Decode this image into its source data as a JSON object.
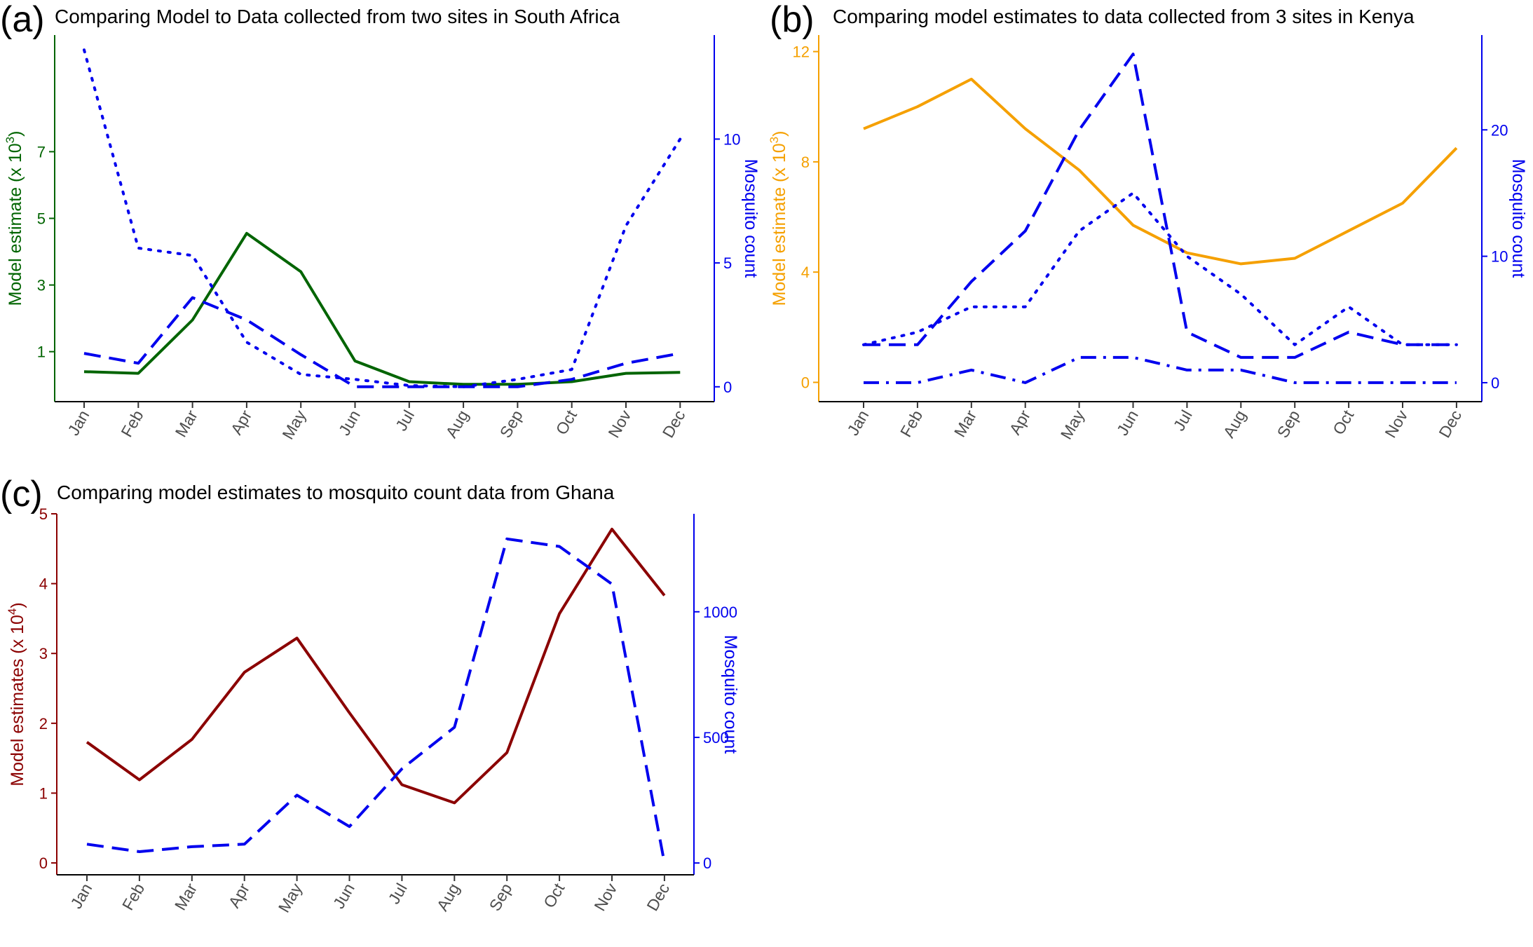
{
  "chart_data": [
    {
      "type": "line",
      "panel_label": "(a)",
      "title": "Comparing Model to Data collected from two sites in South Africa",
      "categories": [
        "Jan",
        "Feb",
        "Mar",
        "Apr",
        "May",
        "Jun",
        "Jul",
        "Aug",
        "Sep",
        "Oct",
        "Nov",
        "Dec"
      ],
      "left_axis": {
        "label_main": "Model estimate (x 10",
        "label_sup": "3",
        "label_end": ")",
        "color": "#006400",
        "ticks": [
          1,
          3,
          5,
          7
        ],
        "ylim": [
          -0.5,
          10.5
        ]
      },
      "right_axis": {
        "label": "Mosquito count",
        "color": "#0000ee",
        "ticks": [
          0,
          5,
          10
        ],
        "ylim": [
          -0.6,
          14.2
        ]
      },
      "series": [
        {
          "axis": "left",
          "color": "#006400",
          "dash": "solid",
          "values": [
            0.4,
            0.35,
            1.95,
            4.55,
            3.4,
            0.72,
            0.1,
            0.02,
            0.02,
            0.1,
            0.35,
            0.38
          ]
        },
        {
          "axis": "right",
          "color": "#0000ee",
          "dash": "dashed",
          "values": [
            1.35,
            0.95,
            3.6,
            2.7,
            1.3,
            0.0,
            0.0,
            0.0,
            0.0,
            0.3,
            0.95,
            1.35
          ]
        },
        {
          "axis": "right",
          "color": "#0000ee",
          "dash": "dotted",
          "values": [
            13.6,
            5.6,
            5.3,
            1.8,
            0.5,
            0.3,
            0.05,
            0.0,
            0.3,
            0.7,
            6.5,
            10.0
          ]
        }
      ]
    },
    {
      "type": "line",
      "panel_label": "(b)",
      "title": "Comparing model estimates to data collected from 3 sites in Kenya",
      "categories": [
        "Jan",
        "Feb",
        "Mar",
        "Apr",
        "May",
        "Jun",
        "Jul",
        "Aug",
        "Sep",
        "Oct",
        "Nov",
        "Dec"
      ],
      "left_axis": {
        "label_main": "Model estimate (x 10",
        "label_sup": "3",
        "label_end": ")",
        "color": "#f5a000",
        "ticks": [
          0,
          4,
          8,
          12
        ],
        "ylim": [
          -0.7,
          12.6
        ]
      },
      "right_axis": {
        "label": "Mosquito count",
        "color": "#0000ee",
        "ticks": [
          0,
          10,
          20
        ],
        "ylim": [
          -1.5,
          27.5
        ]
      },
      "series": [
        {
          "axis": "left",
          "color": "#f5a000",
          "dash": "solid",
          "values": [
            9.2,
            10.0,
            11.0,
            9.2,
            7.7,
            5.7,
            4.7,
            4.3,
            4.5,
            5.5,
            6.5,
            8.5
          ]
        },
        {
          "axis": "right",
          "color": "#0000ee",
          "dash": "dashed",
          "values": [
            3,
            3,
            8,
            12,
            20,
            26,
            4,
            2,
            2,
            4,
            3,
            3
          ]
        },
        {
          "axis": "right",
          "color": "#0000ee",
          "dash": "dotted",
          "values": [
            3,
            4,
            6,
            6,
            12,
            15,
            10,
            7,
            3,
            6,
            3,
            3
          ]
        },
        {
          "axis": "right",
          "color": "#0000ee",
          "dash": "dotdash",
          "values": [
            0,
            0,
            1,
            0,
            2,
            2,
            1,
            1,
            0,
            0,
            0,
            0
          ]
        }
      ]
    },
    {
      "type": "line",
      "panel_label": "(c)",
      "title": "Comparing model estimates to mosquito count data from Ghana",
      "categories": [
        "Jan",
        "Feb",
        "Mar",
        "Apr",
        "May",
        "Jun",
        "Jul",
        "Aug",
        "Sep",
        "Oct",
        "Nov",
        "Dec"
      ],
      "left_axis": {
        "label_main": "Model estimates (x 10",
        "label_sup": "4",
        "label_end": ")",
        "color": "#8b0000",
        "ticks": [
          0,
          1,
          2,
          3,
          4,
          5
        ],
        "ylim": [
          -0.17,
          5.0
        ]
      },
      "right_axis": {
        "label": "Mosquito count",
        "color": "#0000ee",
        "ticks": [
          0,
          500,
          1000
        ],
        "ylim": [
          -47,
          1390
        ]
      },
      "series": [
        {
          "axis": "left",
          "color": "#8b0000",
          "dash": "solid",
          "values": [
            1.73,
            1.19,
            1.77,
            2.73,
            3.22,
            2.15,
            1.12,
            0.86,
            1.58,
            3.57,
            4.78,
            3.83
          ]
        },
        {
          "axis": "right",
          "color": "#0000ee",
          "dash": "dashed",
          "values": [
            75,
            45,
            65,
            75,
            270,
            145,
            375,
            540,
            1290,
            1260,
            1110,
            0
          ]
        }
      ]
    }
  ]
}
